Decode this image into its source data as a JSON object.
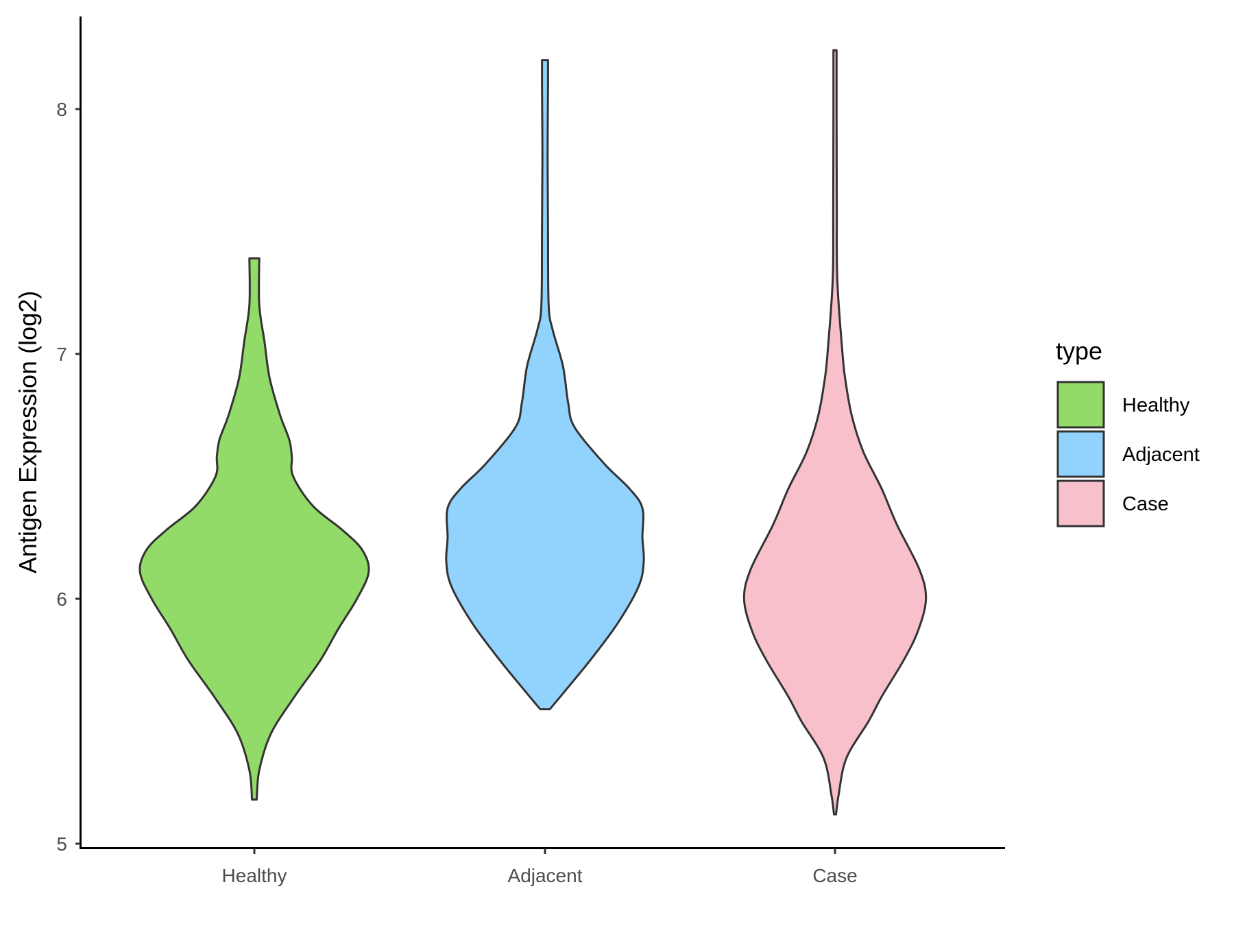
{
  "chart_data": {
    "type": "violin",
    "ylabel": "Antigen Expression (log2)",
    "xlabel": "",
    "ylim": [
      5,
      8.4
    ],
    "yticks": [
      5,
      6,
      7,
      8
    ],
    "grid": false,
    "legend_position": "right",
    "legend_title": "type",
    "categories": [
      "Healthy",
      "Adjacent",
      "Case"
    ],
    "series": [
      {
        "name": "Healthy",
        "color": "#93db69",
        "min": 5.18,
        "max": 7.39,
        "density": [
          [
            5.18,
            0.01
          ],
          [
            5.3,
            0.03
          ],
          [
            5.45,
            0.12
          ],
          [
            5.6,
            0.3
          ],
          [
            5.75,
            0.5
          ],
          [
            5.88,
            0.64
          ],
          [
            6.0,
            0.78
          ],
          [
            6.11,
            0.87
          ],
          [
            6.2,
            0.82
          ],
          [
            6.28,
            0.67
          ],
          [
            6.38,
            0.44
          ],
          [
            6.5,
            0.29
          ],
          [
            6.58,
            0.28
          ],
          [
            6.65,
            0.26
          ],
          [
            6.75,
            0.19
          ],
          [
            6.9,
            0.11
          ],
          [
            7.05,
            0.07
          ],
          [
            7.2,
            0.03
          ],
          [
            7.39,
            0.03
          ]
        ]
      },
      {
        "name": "Adjacent",
        "color": "#92d3fe",
        "min": 5.55,
        "max": 8.2,
        "density": [
          [
            5.55,
            0.03
          ],
          [
            5.62,
            0.14
          ],
          [
            5.75,
            0.34
          ],
          [
            5.9,
            0.55
          ],
          [
            6.05,
            0.71
          ],
          [
            6.15,
            0.75
          ],
          [
            6.25,
            0.74
          ],
          [
            6.37,
            0.74
          ],
          [
            6.45,
            0.64
          ],
          [
            6.55,
            0.45
          ],
          [
            6.7,
            0.22
          ],
          [
            6.8,
            0.17
          ],
          [
            6.95,
            0.13
          ],
          [
            7.1,
            0.05
          ],
          [
            7.2,
            0.02
          ],
          [
            7.5,
            0.015
          ],
          [
            7.8,
            0.012
          ],
          [
            8.1,
            0.015
          ],
          [
            8.2,
            0.015
          ]
        ]
      },
      {
        "name": "Case",
        "color": "#f7c0cb",
        "min": 5.12,
        "max": 8.24,
        "density": [
          [
            5.12,
            0.0
          ],
          [
            5.2,
            0.02
          ],
          [
            5.35,
            0.08
          ],
          [
            5.5,
            0.25
          ],
          [
            5.6,
            0.35
          ],
          [
            5.75,
            0.52
          ],
          [
            5.87,
            0.63
          ],
          [
            6.0,
            0.69
          ],
          [
            6.12,
            0.64
          ],
          [
            6.3,
            0.47
          ],
          [
            6.45,
            0.35
          ],
          [
            6.6,
            0.21
          ],
          [
            6.75,
            0.12
          ],
          [
            6.9,
            0.07
          ],
          [
            7.0,
            0.05
          ],
          [
            7.3,
            0.01
          ],
          [
            7.6,
            0.006
          ],
          [
            8.0,
            0.004
          ],
          [
            8.24,
            0.004
          ]
        ]
      }
    ]
  }
}
